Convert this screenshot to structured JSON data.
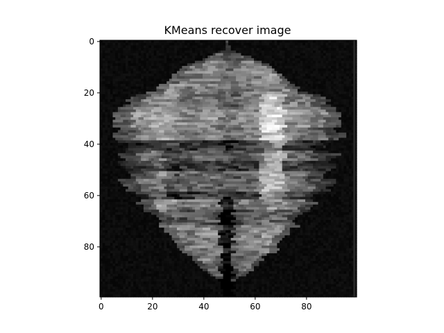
{
  "title": "KMeans recover image",
  "x_axis": {
    "range": [
      -0.5,
      99.5
    ],
    "ticks": [
      0,
      20,
      40,
      60,
      80
    ],
    "tick_labels": [
      "0",
      "20",
      "40",
      "60",
      "80"
    ]
  },
  "y_axis": {
    "range": [
      -0.5,
      99.5
    ],
    "inverted": true,
    "ticks": [
      0,
      20,
      40,
      60,
      80
    ],
    "tick_labels": [
      "0",
      "20",
      "40",
      "60",
      "80"
    ]
  },
  "image": {
    "grid_size": 100,
    "colormap": "grayscale"
  },
  "colors": {
    "background": "#ffffff",
    "axes_edge": "#000000"
  }
}
